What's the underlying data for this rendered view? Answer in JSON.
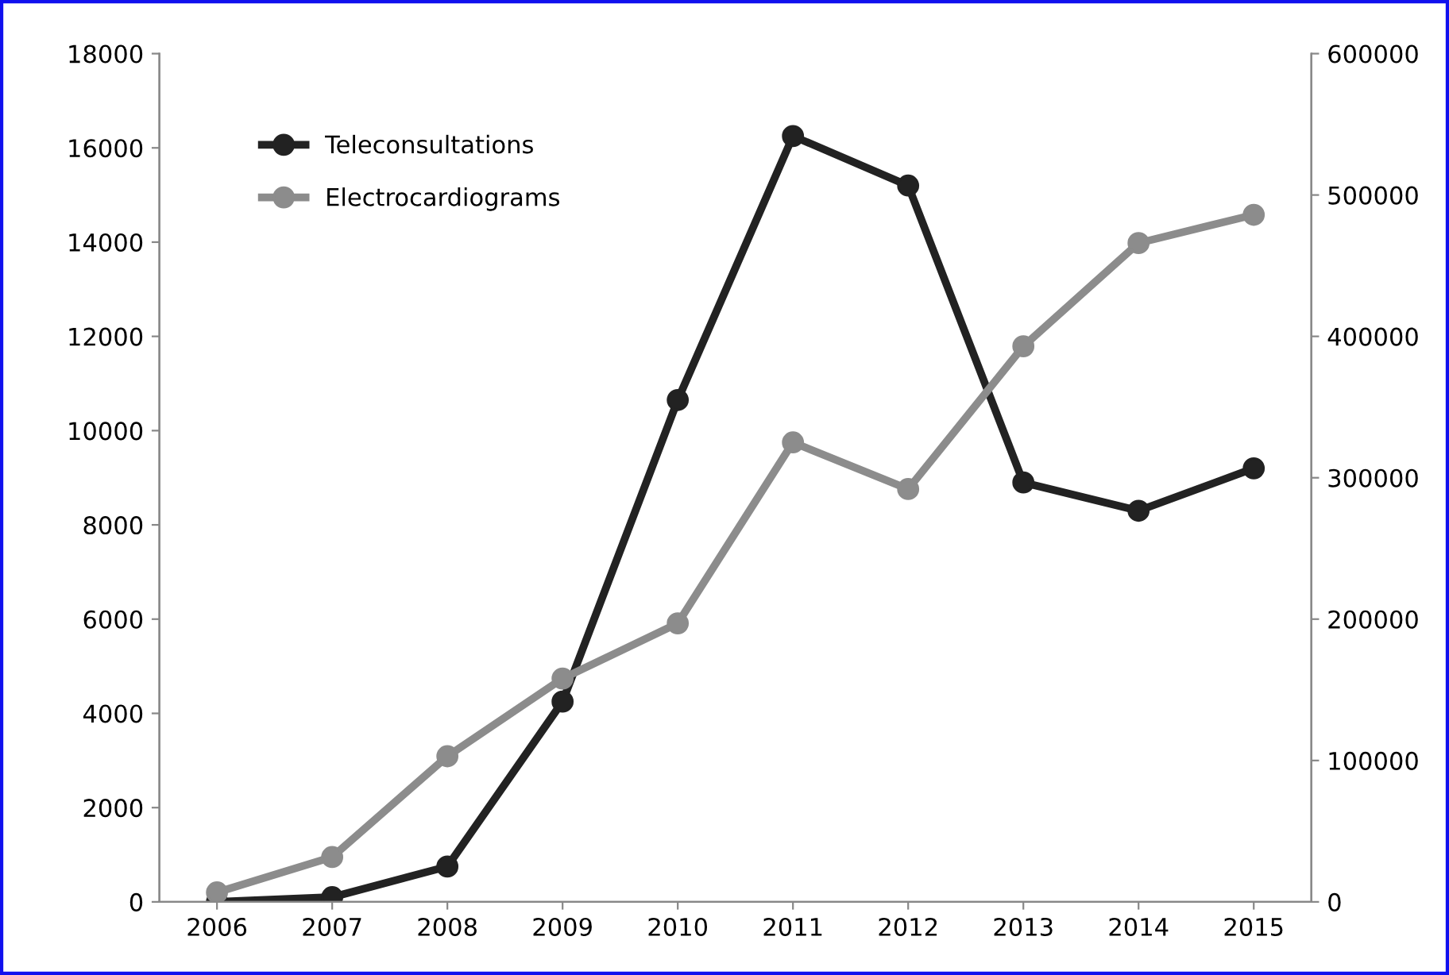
{
  "chart_data": {
    "type": "line",
    "categories": [
      "2006",
      "2007",
      "2008",
      "2009",
      "2010",
      "2011",
      "2012",
      "2013",
      "2014",
      "2015"
    ],
    "series": [
      {
        "name": "Teleconsultations",
        "color": "#222222",
        "values": [
          0,
          100,
          750,
          4250,
          10650,
          16250,
          15200,
          8900,
          8300,
          9200
        ]
      },
      {
        "name": "Electrocardiograms",
        "color": "#8c8c8c",
        "axis": "y2",
        "values": [
          6700,
          31700,
          103000,
          158000,
          197000,
          325000,
          292000,
          393000,
          466000,
          486000
        ]
      }
    ],
    "ylim": [
      0,
      18000
    ],
    "yticks": [
      0,
      2000,
      4000,
      6000,
      8000,
      10000,
      12000,
      14000,
      16000,
      18000
    ],
    "y2lim": [
      0,
      600000
    ],
    "y2ticks": [
      0,
      100000,
      200000,
      300000,
      400000,
      500000,
      600000
    ],
    "legend": "top left",
    "grid": false,
    "marker": "circle",
    "line_style": "solid"
  }
}
